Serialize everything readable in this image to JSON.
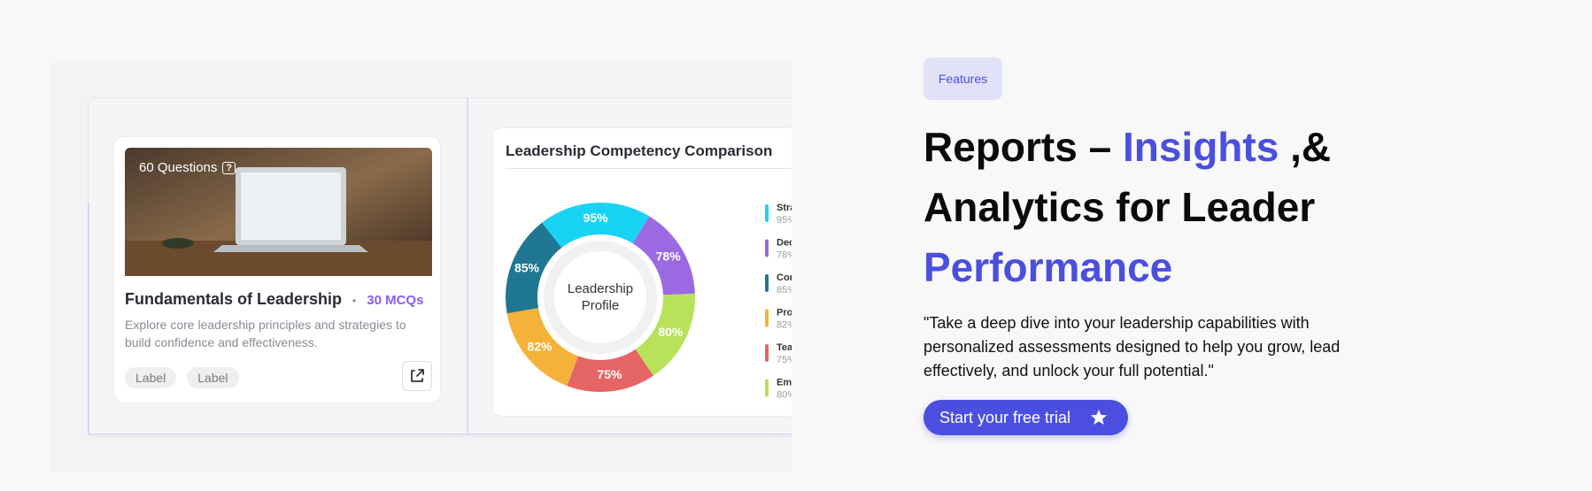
{
  "card": {
    "questions": "60 Questions",
    "question_icon": "?",
    "title": "Fundamentals of Leadership",
    "separator": "•",
    "mcqs": "30 MCQs",
    "description": "Explore core leadership principles and strategies to build confidence and effectiveness.",
    "labels": [
      "Label",
      "Label"
    ]
  },
  "chart_data": {
    "type": "pie",
    "title": "Leadership Competency Comparison",
    "center_label": [
      "Leadership",
      "Profile"
    ],
    "categories": [
      "Stra",
      "Dec",
      "Com",
      "Pro",
      "Tea",
      "Em"
    ],
    "values": [
      95,
      78,
      85,
      82,
      75,
      80
    ],
    "value_labels": [
      "95%",
      "78%",
      "85%",
      "82%",
      "75%",
      "80%"
    ],
    "colors": [
      "#19d3f5",
      "#9b6ae3",
      "#1f7794",
      "#f4b23a",
      "#e56565",
      "#b8e25a"
    ]
  },
  "hero": {
    "badge": "Features",
    "accent_color": "#4b4fe0",
    "heading_lines": [
      [
        {
          "text": "Reports – ",
          "accent": false
        },
        {
          "text": "Insights",
          "accent": true
        },
        {
          "text": " ,&",
          "accent": false
        }
      ],
      [
        {
          "text": "Analytics for Leader",
          "accent": false
        }
      ],
      [
        {
          "text": "Performance",
          "accent": true
        }
      ]
    ],
    "paragraph": "\"Take a deep dive into your leadership capabilities with personalized assessments designed to help you grow, lead effectively, and unlock your full potential.\"",
    "button": "Start your free trial"
  }
}
